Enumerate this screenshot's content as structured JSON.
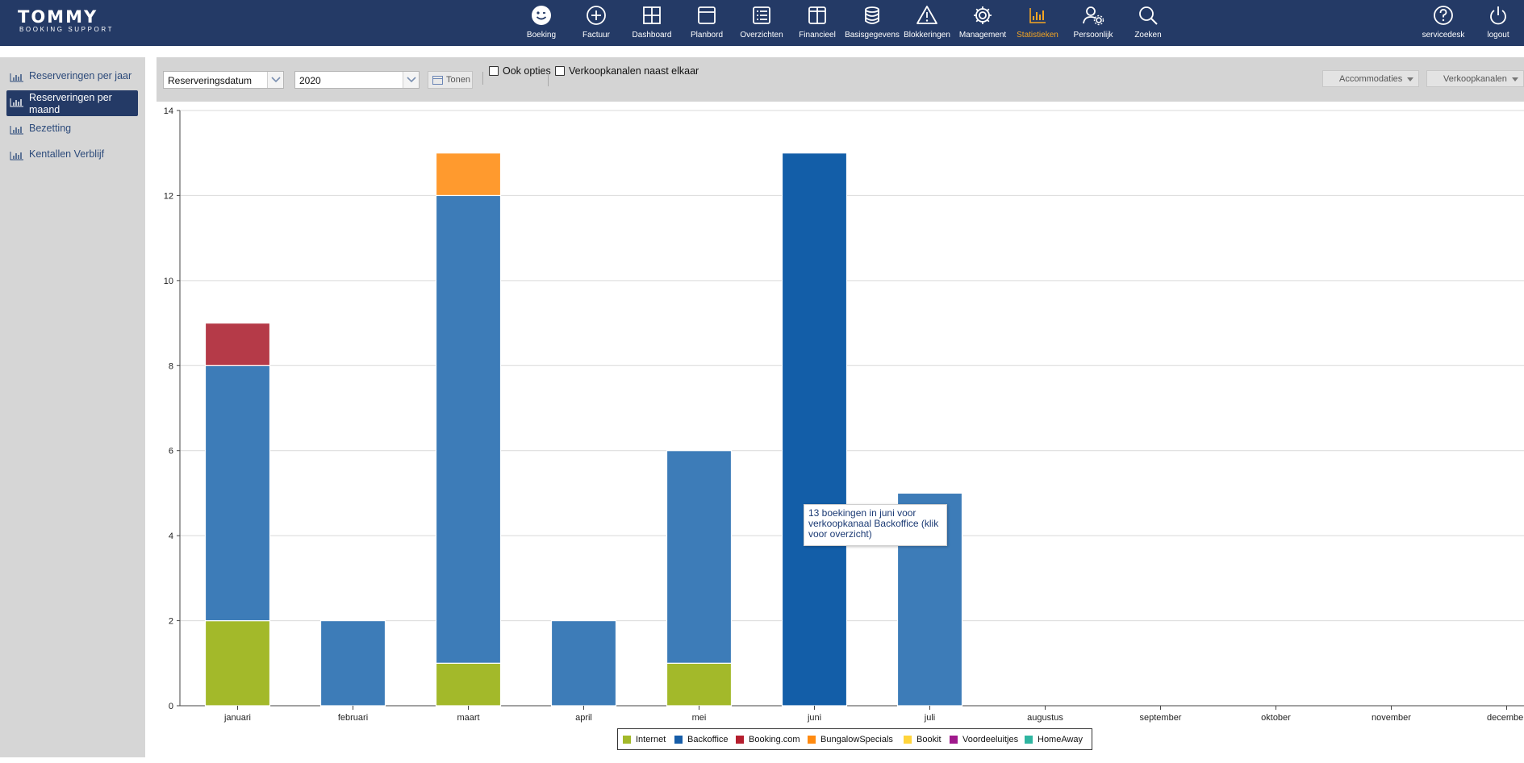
{
  "app": {
    "logo_title": "TOMMY",
    "logo_subtitle": "BOOKING SUPPORT"
  },
  "nav": {
    "items": [
      {
        "label": "Boeking",
        "icon": "smiley-icon"
      },
      {
        "label": "Factuur",
        "icon": "plus-circle-icon"
      },
      {
        "label": "Dashboard",
        "icon": "grid-icon"
      },
      {
        "label": "Planbord",
        "icon": "board-icon"
      },
      {
        "label": "Overzichten",
        "icon": "list-icon"
      },
      {
        "label": "Financieel",
        "icon": "book-icon"
      },
      {
        "label": "Basisgegevens",
        "icon": "database-icon"
      },
      {
        "label": "Blokkeringen",
        "icon": "warning-icon"
      },
      {
        "label": "Management",
        "icon": "gear-icon"
      },
      {
        "label": "Statistieken",
        "icon": "bar-chart-icon",
        "active": true
      },
      {
        "label": "Persoonlijk",
        "icon": "user-gear-icon"
      },
      {
        "label": "Zoeken",
        "icon": "search-icon"
      }
    ],
    "right_items": [
      {
        "label": "servicedesk",
        "icon": "help-icon"
      },
      {
        "label": "logout",
        "icon": "power-icon"
      }
    ],
    "active_color": "#f5a623",
    "bar_color": "#243a66"
  },
  "sidebar": {
    "items": [
      {
        "label": "Reserveringen per jaar",
        "icon": "chart-icon"
      },
      {
        "label": "Reserveringen per maand",
        "icon": "chart-icon",
        "active": true
      },
      {
        "label": "Bezetting",
        "icon": "chart-icon"
      },
      {
        "label": "Kentallen Verblijf",
        "icon": "chart-icon"
      }
    ]
  },
  "toolbar": {
    "date_type": "Reserveringsdatum",
    "year": "2020",
    "show_button": "Tonen",
    "option_ook_opties": "Ook opties",
    "option_verkoopkanalen": "Verkoopkanalen naast elkaar",
    "accommodaties_button": "Accommodaties",
    "verkoopkanalen_button": "Verkoopkanalen"
  },
  "tooltip": {
    "text": "13 boekingen in juni voor verkoopkanaal Backoffice (klik voor overzicht)"
  },
  "chart_data": {
    "type": "bar",
    "stacked": true,
    "categories": [
      "januari",
      "februari",
      "maart",
      "april",
      "mei",
      "juni",
      "juli",
      "augustus",
      "september",
      "oktober",
      "november",
      "december"
    ],
    "ylim": [
      0,
      14
    ],
    "yticks": [
      "0",
      "2",
      "4",
      "6",
      "8",
      "10",
      "12",
      "14"
    ],
    "grid": true,
    "legend_position": "bottom",
    "highlighted": {
      "category": "juni",
      "series": "Backoffice"
    },
    "series": [
      {
        "name": "Internet",
        "color": "#a3b92a",
        "values": [
          2,
          0,
          1,
          0,
          1,
          0,
          0,
          0,
          0,
          0,
          0,
          0
        ]
      },
      {
        "name": "Backoffice",
        "color": "#3d7cb8",
        "values": [
          6,
          2,
          11,
          2,
          5,
          13,
          5,
          0,
          0,
          0,
          0,
          0
        ]
      },
      {
        "name": "Booking.com",
        "color": "#b53a48",
        "values": [
          1,
          0,
          0,
          0,
          0,
          0,
          0,
          0,
          0,
          0,
          0,
          0
        ]
      },
      {
        "name": "BungalowSpecials",
        "color": "#ff9a2e",
        "values": [
          0,
          0,
          1,
          0,
          0,
          0,
          0,
          0,
          0,
          0,
          0,
          0
        ]
      },
      {
        "name": "Bookit",
        "color": "#ffd43b",
        "values": [
          0,
          0,
          0,
          0,
          0,
          0,
          0,
          0,
          0,
          0,
          0,
          0
        ]
      },
      {
        "name": "Voordeeluitjes",
        "color": "#a0198c",
        "values": [
          0,
          0,
          0,
          0,
          0,
          0,
          0,
          0,
          0,
          0,
          0,
          0
        ]
      },
      {
        "name": "HomeAway",
        "color": "#2fb5a0",
        "values": [
          0,
          0,
          0,
          0,
          0,
          0,
          0,
          0,
          0,
          0,
          0,
          0
        ]
      }
    ],
    "legend": [
      {
        "name": "Internet",
        "color": "#a3b92a"
      },
      {
        "name": "Backoffice",
        "color": "#165da8"
      },
      {
        "name": "Booking.com",
        "color": "#b51e2e"
      },
      {
        "name": "BungalowSpecials",
        "color": "#ff8a10"
      },
      {
        "name": "Bookit",
        "color": "#ffd43b"
      },
      {
        "name": "Voordeeluitjes",
        "color": "#a0198c"
      },
      {
        "name": "HomeAway",
        "color": "#2fb5a0"
      }
    ]
  }
}
